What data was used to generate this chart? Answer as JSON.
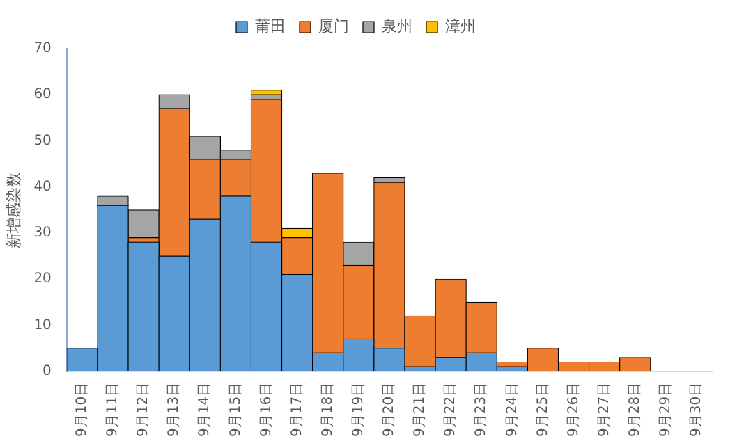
{
  "chart_data": {
    "type": "bar",
    "stacked": true,
    "ylabel": "新增感染数",
    "categories": [
      "9月10日",
      "9月11日",
      "9月12日",
      "9月13日",
      "9月14日",
      "9月15日",
      "9月16日",
      "9月17日",
      "9月18日",
      "9月19日",
      "9月20日",
      "9月21日",
      "9月22日",
      "9月23日",
      "9月24日",
      "9月25日",
      "9月26日",
      "9月27日",
      "9月28日",
      "9月29日",
      "9月30日"
    ],
    "series": [
      {
        "name": "莆田",
        "color": "#5b9bd5",
        "values": [
          5,
          36,
          28,
          25,
          33,
          38,
          28,
          21,
          4,
          7,
          5,
          1,
          3,
          4,
          1,
          0,
          0,
          0,
          0,
          0,
          0
        ]
      },
      {
        "name": "厦门",
        "color": "#ed7d31",
        "values": [
          0,
          0,
          1,
          32,
          13,
          8,
          31,
          8,
          39,
          16,
          36,
          11,
          17,
          11,
          1,
          5,
          2,
          2,
          3,
          0,
          0
        ]
      },
      {
        "name": "泉州",
        "color": "#a5a5a5",
        "values": [
          0,
          2,
          6,
          3,
          5,
          2,
          1,
          0,
          0,
          5,
          1,
          0,
          0,
          0,
          0,
          0,
          0,
          0,
          0,
          0,
          0
        ]
      },
      {
        "name": "漳州",
        "color": "#ffc000",
        "values": [
          0,
          0,
          0,
          0,
          0,
          0,
          1,
          2,
          0,
          0,
          0,
          0,
          0,
          0,
          0,
          0,
          0,
          0,
          0,
          0,
          0
        ]
      }
    ],
    "ylim": [
      0,
      70
    ],
    "yticks": [
      0,
      10,
      20,
      30,
      40,
      50,
      60,
      70
    ],
    "grid": false,
    "legend": "top"
  }
}
